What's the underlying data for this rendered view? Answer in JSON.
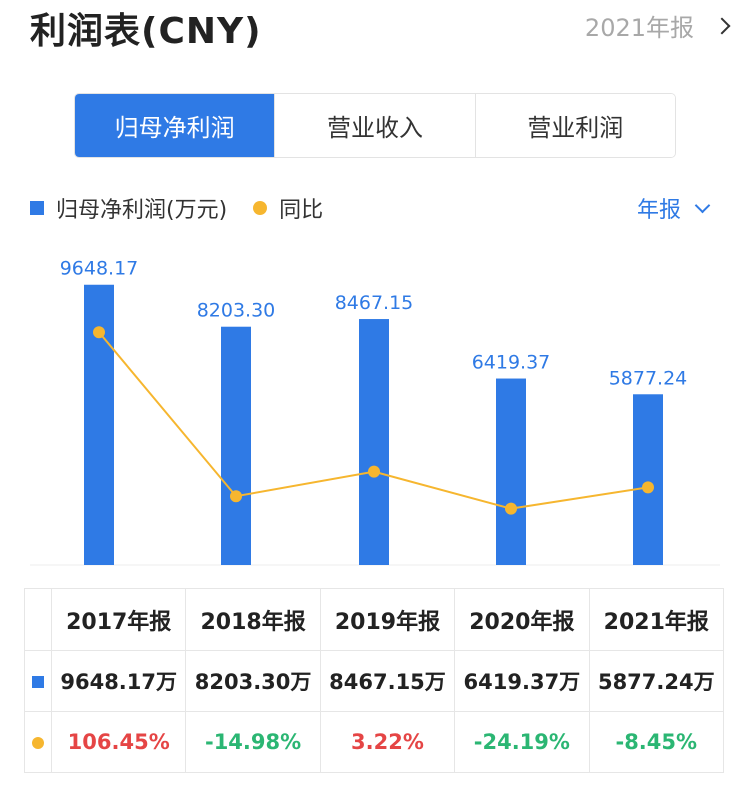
{
  "header": {
    "title": "利润表(CNY)",
    "period_link": "2021年报"
  },
  "tabs": [
    {
      "label": "归母净利润",
      "active": true
    },
    {
      "label": "营业收入",
      "active": false
    },
    {
      "label": "营业利润",
      "active": false
    }
  ],
  "legend": {
    "bar_label": "归母净利润(万元)",
    "line_label": "同比"
  },
  "period_select": "年报",
  "colors": {
    "accent": "#2f7ae5",
    "line": "#f6b62f",
    "positive": "#e54545",
    "negative": "#2bb673"
  },
  "chart_data": {
    "type": "bar",
    "categories": [
      "2017年报",
      "2018年报",
      "2019年报",
      "2020年报",
      "2021年报"
    ],
    "series": [
      {
        "name": "归母净利润(万元)",
        "type": "bar",
        "values": [
          9648.17,
          8203.3,
          8467.15,
          6419.37,
          5877.24
        ],
        "labels": [
          "9648.17",
          "8203.30",
          "8467.15",
          "6419.37",
          "5877.24"
        ]
      },
      {
        "name": "同比",
        "type": "line",
        "values": [
          106.45,
          -14.98,
          3.22,
          -24.19,
          -8.45
        ]
      }
    ],
    "ylim": [
      0,
      10500
    ],
    "grid": false
  },
  "table": {
    "headers": [
      "2017年报",
      "2018年报",
      "2019年报",
      "2020年报",
      "2021年报"
    ],
    "values": [
      "9648.17万",
      "8203.30万",
      "8467.15万",
      "6419.37万",
      "5877.24万"
    ],
    "yoy": [
      "106.45%",
      "-14.98%",
      "3.22%",
      "-24.19%",
      "-8.45%"
    ]
  }
}
